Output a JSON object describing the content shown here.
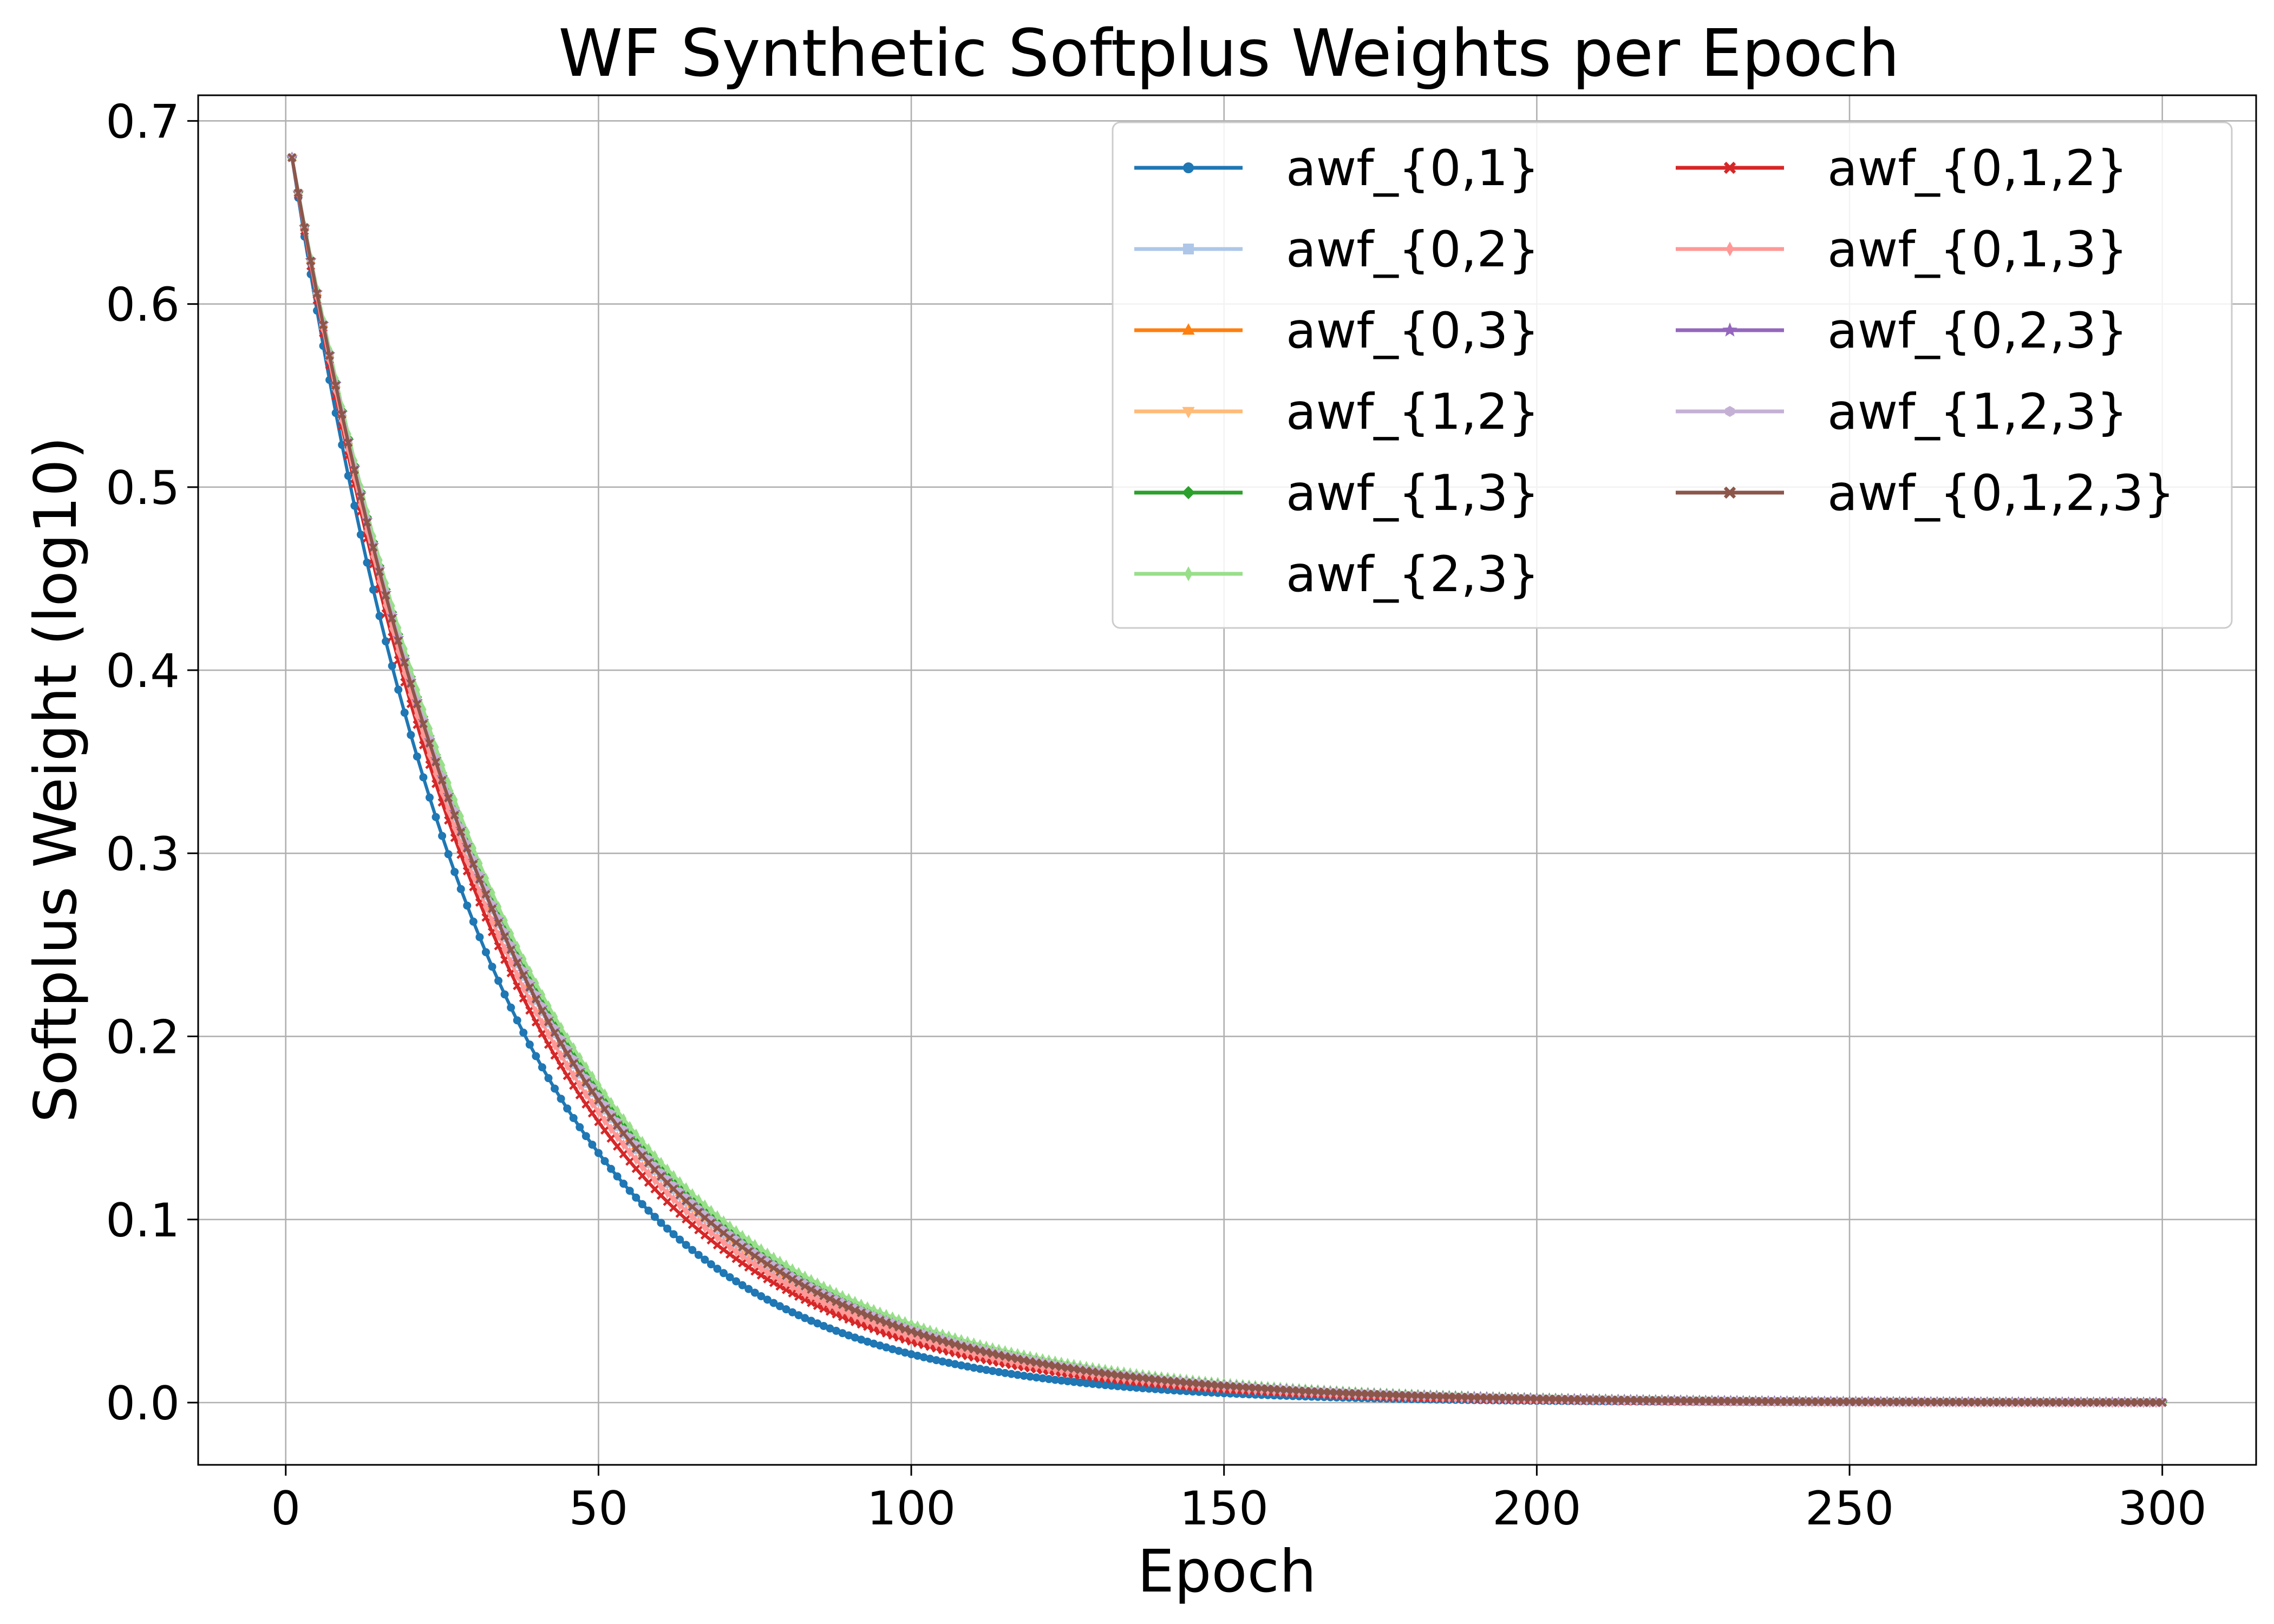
{
  "chart_data": {
    "type": "line",
    "title": "WF Synthetic Softplus Weights per Epoch",
    "xlabel": "Epoch",
    "ylabel": "Softplus Weight (log10)",
    "xlim": [
      -14,
      315
    ],
    "ylim": [
      -0.034,
      0.714
    ],
    "xticks": [
      0,
      50,
      100,
      150,
      200,
      250,
      300
    ],
    "yticks": [
      0.0,
      0.1,
      0.2,
      0.3,
      0.4,
      0.5,
      0.6,
      0.7
    ],
    "ytick_labels": [
      "0.0",
      "0.1",
      "0.2",
      "0.3",
      "0.4",
      "0.5",
      "0.6",
      "0.7"
    ],
    "grid": true,
    "legend": {
      "position": "top-right",
      "columns": 2
    },
    "x_range": [
      1,
      300
    ],
    "series": [
      {
        "name": "awf_{0,1}",
        "color": "#1f77b4",
        "marker": "circle",
        "start": 0.68,
        "decay": 0.0328
      },
      {
        "name": "awf_{0,2}",
        "color": "#aec7e8",
        "marker": "square",
        "start": 0.68,
        "decay": 0.029
      },
      {
        "name": "awf_{0,3}",
        "color": "#ff7f0e",
        "marker": "triangle-up",
        "start": 0.68,
        "decay": 0.0287
      },
      {
        "name": "awf_{1,2}",
        "color": "#ffbb78",
        "marker": "triangle-down",
        "start": 0.68,
        "decay": 0.0288
      },
      {
        "name": "awf_{1,3}",
        "color": "#2ca02c",
        "marker": "diamond",
        "start": 0.68,
        "decay": 0.0284
      },
      {
        "name": "awf_{2,3}",
        "color": "#98df8a",
        "marker": "thin-diamond",
        "start": 0.68,
        "decay": 0.0279
      },
      {
        "name": "awf_{0,1,2}",
        "color": "#d62728",
        "marker": "x",
        "start": 0.68,
        "decay": 0.0304
      },
      {
        "name": "awf_{0,1,3}",
        "color": "#ff9896",
        "marker": "thin-diamond",
        "start": 0.68,
        "decay": 0.0297
      },
      {
        "name": "awf_{0,2,3}",
        "color": "#9467bd",
        "marker": "star",
        "start": 0.68,
        "decay": 0.0287
      },
      {
        "name": "awf_{1,2,3}",
        "color": "#c5b0d5",
        "marker": "hexagon",
        "start": 0.68,
        "decay": 0.0286
      },
      {
        "name": "awf_{0,1,2,3}",
        "color": "#8c564b",
        "marker": "x",
        "start": 0.68,
        "decay": 0.0289
      }
    ]
  }
}
